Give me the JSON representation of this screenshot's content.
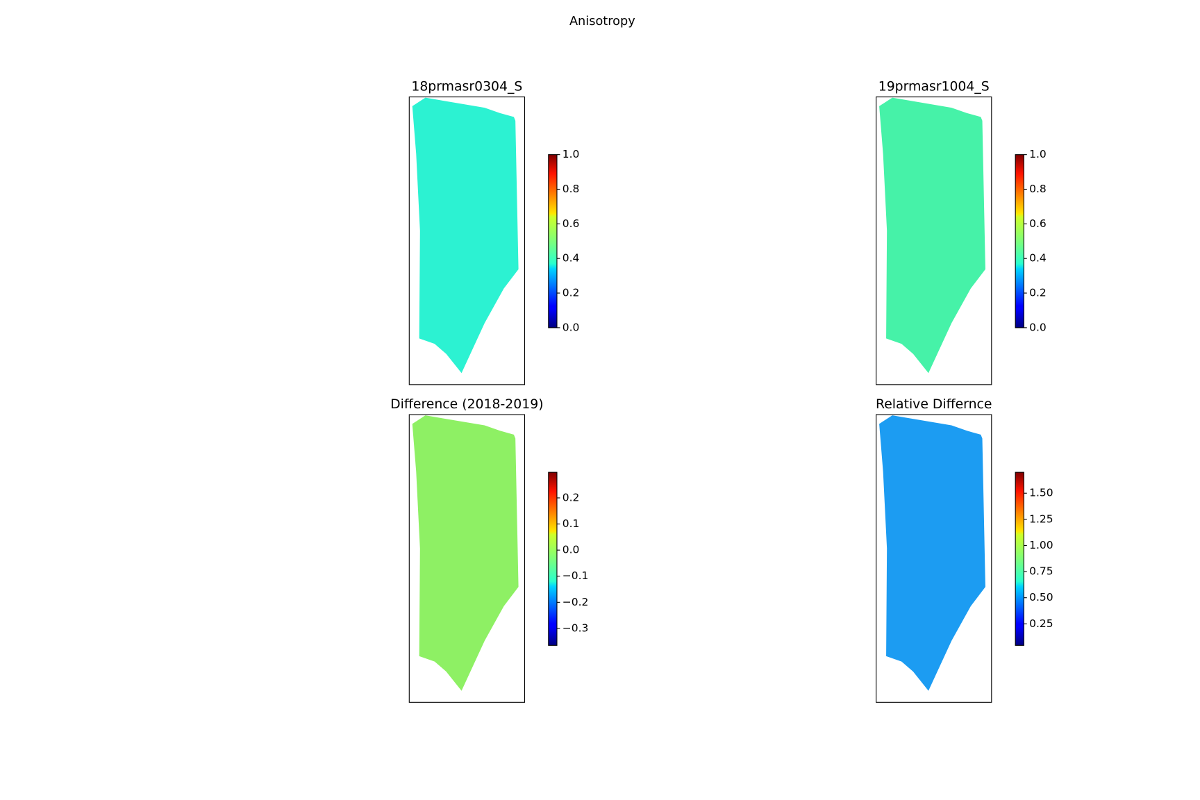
{
  "title": "Anisotropy",
  "chart_data": [
    {
      "type": "image",
      "title": "18prmasr0304_S",
      "cmap": "jet",
      "color": "#2cf2d2",
      "clim": [
        0,
        1
      ],
      "cticks": [
        {
          "value": 0,
          "label": "0.0"
        },
        0.2,
        0.4,
        0.6,
        0.8,
        {
          "value": 1,
          "label": "1.0"
        }
      ]
    },
    {
      "type": "image",
      "title": "19prmasr1004_S",
      "cmap": "jet",
      "color": "#46f2a8",
      "clim": [
        0,
        1
      ],
      "cticks": [
        {
          "value": 0,
          "label": "0.0"
        },
        0.2,
        0.4,
        0.6,
        0.8,
        {
          "value": 1,
          "label": "1.0"
        }
      ]
    },
    {
      "type": "image",
      "title": "Difference (2018-2019)",
      "cmap": "jet",
      "color": "#8ef064",
      "clim": [
        -0.365,
        0.298
      ],
      "cticks": [
        {
          "value": -0.3,
          "label": "−0.3"
        },
        {
          "value": -0.2,
          "label": "−0.2"
        },
        {
          "value": -0.1,
          "label": "−0.1"
        },
        {
          "value": 0,
          "label": "0.0"
        },
        0.1,
        0.2
      ]
    },
    {
      "type": "image",
      "title": "Relative Differnce",
      "cmap": "jet",
      "color": "#1c9cf2",
      "clim": [
        0.044,
        1.7
      ],
      "cticks": [
        0.25,
        {
          "value": 0.5,
          "label": "0.50"
        },
        0.75,
        {
          "value": 1,
          "label": "1.00"
        },
        1.25,
        {
          "value": 1.5,
          "label": "1.50"
        }
      ]
    }
  ]
}
